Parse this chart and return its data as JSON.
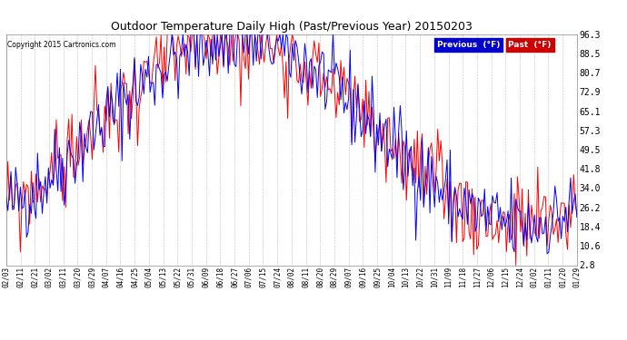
{
  "title": "Outdoor Temperature Daily High (Past/Previous Year) 20150203",
  "copyright": "Copyright 2015 Cartronics.com",
  "ylabel_right": [
    "96.3",
    "88.5",
    "80.7",
    "72.9",
    "65.1",
    "57.3",
    "49.5",
    "41.8",
    "34.0",
    "26.2",
    "18.4",
    "10.6",
    "2.8"
  ],
  "yvalues": [
    96.3,
    88.5,
    80.7,
    72.9,
    65.1,
    57.3,
    49.5,
    41.8,
    34.0,
    26.2,
    18.4,
    10.6,
    2.8
  ],
  "ylim_min": 2.8,
  "ylim_max": 96.3,
  "blue_color": "#0000ff",
  "red_color": "#ff0000",
  "legend_blue_bg": "#0000cc",
  "legend_red_bg": "#cc0000",
  "bg_color": "#ffffff",
  "grid_color": "#aaaaaa",
  "x_tick_labels": [
    "02/03",
    "02/11",
    "02/21",
    "03/02",
    "03/11",
    "03/20",
    "03/29",
    "04/07",
    "04/16",
    "04/25",
    "05/04",
    "05/13",
    "05/22",
    "05/31",
    "06/09",
    "06/18",
    "06/27",
    "07/06",
    "07/15",
    "07/24",
    "08/02",
    "08/11",
    "08/20",
    "08/29",
    "09/07",
    "09/16",
    "09/25",
    "10/04",
    "10/13",
    "10/22",
    "10/31",
    "11/09",
    "11/18",
    "11/27",
    "12/06",
    "12/15",
    "12/24",
    "01/02",
    "01/11",
    "01/20",
    "01/29"
  ],
  "n_points": 366,
  "figwidth": 6.9,
  "figheight": 3.75,
  "dpi": 100
}
